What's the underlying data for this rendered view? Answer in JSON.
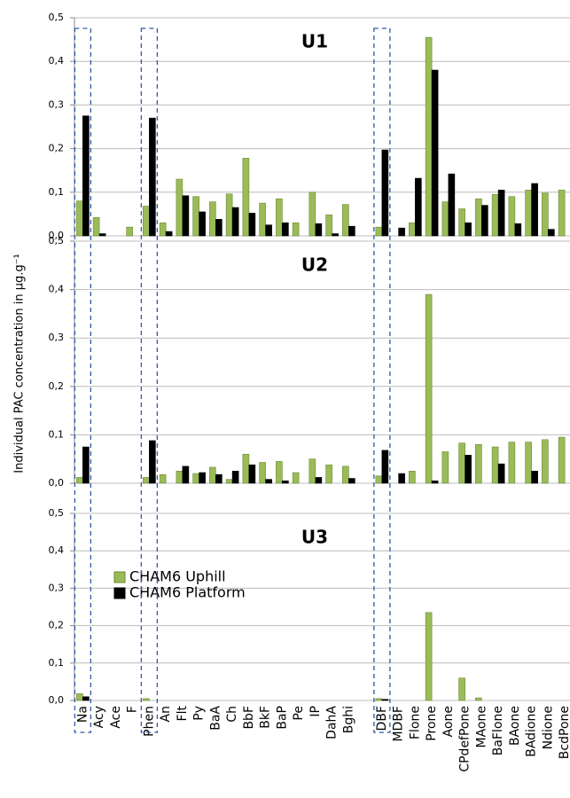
{
  "y_label": "Individual PAC concentration in µg.g⁻¹",
  "chart_data": [
    {
      "type": "bar",
      "title": "U1",
      "grid": true,
      "ylim": [
        0,
        0.5
      ],
      "yticks": [
        {
          "value": 0,
          "label": "0,0"
        },
        {
          "value": 0.1,
          "label": "0,1"
        },
        {
          "value": 0.2,
          "label": "0,2"
        },
        {
          "value": 0.3,
          "label": "0,3"
        },
        {
          "value": 0.4,
          "label": "0,4"
        },
        {
          "value": 0.5,
          "label": "0,5"
        }
      ],
      "series": [
        {
          "color": "#9bbb59",
          "values": [
            0.08,
            0.042,
            0,
            0.02,
            0.068,
            0.03,
            0.13,
            0.09,
            0.078,
            0.096,
            0.178,
            0.075,
            0.085,
            0.03,
            0.1,
            0.048,
            0.072,
            null,
            0.02,
            0,
            0.03,
            0.455,
            0.078,
            0.062,
            0.085,
            0.095,
            0.09,
            0.105,
            0.098,
            0.105
          ]
        },
        {
          "color": "#000000",
          "values": [
            0.275,
            0.005,
            0,
            0,
            0.27,
            0.01,
            0.092,
            0.055,
            0.038,
            0.065,
            0.052,
            0.025,
            0.03,
            0,
            0.028,
            0.005,
            0.022,
            null,
            0.197,
            0.018,
            0.132,
            0.38,
            0.142,
            0.03,
            0.07,
            0.105,
            0.028,
            0.12,
            0.015,
            0
          ]
        }
      ]
    },
    {
      "type": "bar",
      "title": "U2",
      "grid": true,
      "ylim": [
        0,
        0.5
      ],
      "yticks": [
        {
          "value": 0,
          "label": "0,0"
        },
        {
          "value": 0.1,
          "label": "0,1"
        },
        {
          "value": 0.2,
          "label": "0,2"
        },
        {
          "value": 0.3,
          "label": "0,3"
        },
        {
          "value": 0.4,
          "label": "0,4"
        },
        {
          "value": 0.5,
          "label": "0,5"
        }
      ],
      "series": [
        {
          "color": "#9bbb59",
          "values": [
            0.012,
            0,
            0,
            0,
            0.012,
            0.018,
            0.025,
            0.02,
            0.033,
            0.008,
            0.06,
            0.043,
            0.045,
            0.022,
            0.05,
            0.038,
            0.035,
            null,
            0.015,
            0,
            0.025,
            0.39,
            0.065,
            0.083,
            0.08,
            0.075,
            0.085,
            0.085,
            0.09,
            0.095
          ]
        },
        {
          "color": "#000000",
          "values": [
            0.075,
            0,
            0,
            0,
            0.088,
            0,
            0.035,
            0.022,
            0.018,
            0.025,
            0.038,
            0.008,
            0.005,
            0,
            0.012,
            0,
            0.01,
            null,
            0.068,
            0.02,
            0,
            0.005,
            0,
            0.058,
            0,
            0.04,
            0,
            0.025,
            0,
            0
          ]
        }
      ]
    },
    {
      "type": "bar",
      "title": "U3",
      "grid": true,
      "legend": "upper left",
      "categories": [
        "Na",
        "Acy",
        "Ace",
        "F",
        "Phen",
        "An",
        "Flt",
        "Py",
        "BaA",
        "Ch",
        "BbF",
        "BkF",
        "BaP",
        "Pe",
        "IP",
        "DahA",
        "Bghi",
        null,
        "DBF",
        "MDBF",
        "Flone",
        "Prone",
        "Aone",
        "CPdefPone",
        "MAone",
        "BaFlone",
        "BAone",
        "BAdione",
        "Ndione",
        "BcdPone"
      ],
      "ylim": [
        0,
        0.5
      ],
      "yticks": [
        {
          "value": 0,
          "label": "0,0"
        },
        {
          "value": 0.1,
          "label": "0,1"
        },
        {
          "value": 0.2,
          "label": "0,2"
        },
        {
          "value": 0.3,
          "label": "0,3"
        },
        {
          "value": 0.4,
          "label": "0,4"
        },
        {
          "value": 0.5,
          "label": "0,5"
        }
      ],
      "series": [
        {
          "name": "CHAM6 Uphill",
          "color": "#9bbb59",
          "values": [
            0.018,
            0,
            0,
            0,
            0.005,
            0,
            0,
            0,
            0,
            0,
            0,
            0,
            0,
            0,
            0,
            0,
            0,
            null,
            0.005,
            0,
            0,
            0.235,
            0,
            0.06,
            0.007,
            0,
            0,
            0,
            0,
            0
          ]
        },
        {
          "name": "CHAM6 Platform",
          "color": "#000000",
          "values": [
            0.01,
            0,
            0,
            0,
            0,
            0,
            0,
            0,
            0,
            0,
            0,
            0,
            0,
            0,
            0,
            0,
            0,
            null,
            0.003,
            0,
            0,
            0,
            0,
            0,
            0,
            0,
            0,
            0,
            0,
            0
          ]
        }
      ]
    }
  ]
}
